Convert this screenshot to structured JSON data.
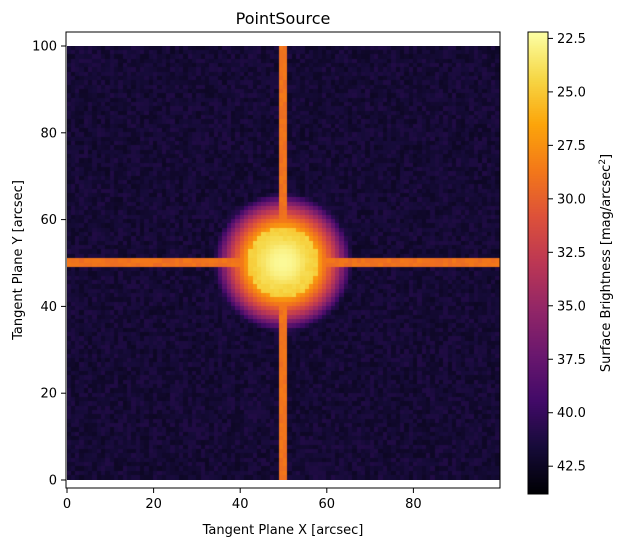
{
  "chart_data": {
    "type": "heatmap",
    "title": "PointSource",
    "xlabel": "Tangent Plane X [arcsec]",
    "ylabel": "Tangent Plane Y [arcsec]",
    "xlim": [
      0,
      100
    ],
    "ylim": [
      0,
      100
    ],
    "x_ticks": [
      0,
      20,
      40,
      60,
      80
    ],
    "y_ticks": [
      0,
      20,
      40,
      60,
      80,
      100
    ],
    "colormap": "inferno",
    "colorbar": {
      "label_main": "Surface Brightness [mag/arcsec",
      "label_sup": "2",
      "label_end": "]",
      "vmin": 22.2,
      "vmax": 43.8,
      "ticks": [
        "22.5",
        "25.0",
        "27.5",
        "30.0",
        "32.5",
        "35.0",
        "37.5",
        "40.0",
        "42.5"
      ],
      "inverted": true
    },
    "source": {
      "x": 50,
      "y": 50,
      "peak_mag": 22.5,
      "core_radius": 16,
      "spike_mag": 29.0,
      "spike_half_width": 1.5,
      "background_mag": 41.8
    },
    "grid": false
  }
}
